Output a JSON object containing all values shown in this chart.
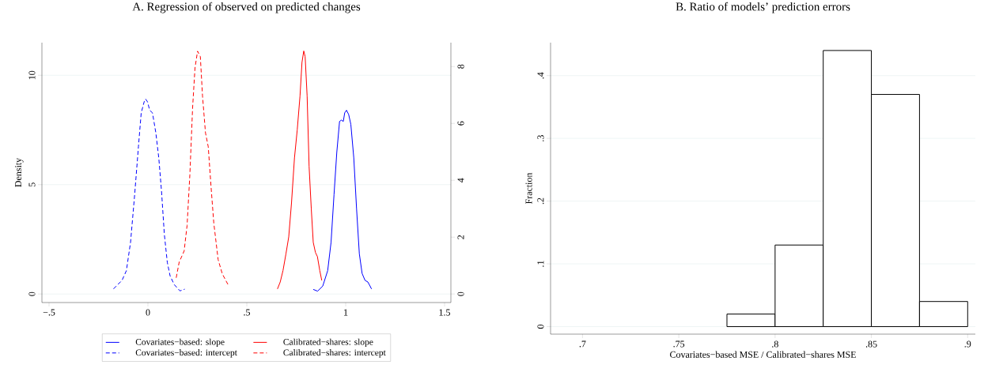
{
  "chart_data": [
    {
      "type": "line",
      "title": "A. Regression of observed on predicted changes",
      "ylabel": "Density",
      "legend": "bottom",
      "grid": "y",
      "xlim": [
        -0.536,
        1.532
      ],
      "xticks": [
        {
          "value": -0.5,
          "label": "−.5"
        },
        0,
        {
          "value": 0.5,
          "label": ".5"
        },
        1,
        1.5
      ],
      "ylim": [
        -0.39,
        11.49
      ],
      "yticks": [
        0,
        5,
        10
      ],
      "y2lim": [
        -0.3,
        8.84
      ],
      "y2ticks": [
        0,
        2,
        4,
        6,
        8
      ],
      "series": [
        {
          "name": "Covariates−based: slope",
          "color": "#0000ff",
          "line_style": "solid",
          "x": [
            0.836,
            0.858,
            0.884,
            0.909,
            0.926,
            0.941,
            0.955,
            0.969,
            0.978,
            0.988,
            0.995,
            1.004,
            1.015,
            1.026,
            1.041,
            1.055,
            1.069,
            1.083,
            1.098,
            1.112,
            1.131
          ],
          "values": [
            0.21,
            0.13,
            0.36,
            1.07,
            2.36,
            4.54,
            6.47,
            7.89,
            7.95,
            7.89,
            8.28,
            8.4,
            8.21,
            7.76,
            6.22,
            3.9,
            1.84,
            0.94,
            0.62,
            0.55,
            0.23
          ]
        },
        {
          "name": "Calibrated−shares: slope",
          "color": "#ff0000",
          "line_style": "solid",
          "x": [
            0.655,
            0.669,
            0.683,
            0.698,
            0.712,
            0.726,
            0.741,
            0.755,
            0.769,
            0.779,
            0.788,
            0.795,
            0.805,
            0.815,
            0.826,
            0.836,
            0.847,
            0.857,
            0.869,
            0.879
          ],
          "values": [
            0.23,
            0.55,
            1.07,
            1.84,
            2.61,
            4.16,
            6.22,
            7.5,
            9.05,
            10.59,
            11.11,
            10.85,
            9.05,
            5.83,
            3.9,
            2.36,
            1.9,
            1.71,
            1.07,
            0.62
          ]
        },
        {
          "name": "Covariates−based: intercept",
          "color": "#0000ff",
          "line_style": "dashed",
          "axis": "y2",
          "x": [
            -0.174,
            -0.131,
            -0.109,
            -0.088,
            -0.067,
            -0.048,
            -0.034,
            -0.019,
            -0.012,
            -0.002,
            0.009,
            0.023,
            0.04,
            0.055,
            0.069,
            0.083,
            0.098,
            0.112,
            0.133,
            0.162,
            0.186
          ],
          "values": [
            0.18,
            0.48,
            0.82,
            1.81,
            3.5,
            5.18,
            6.37,
            6.76,
            6.86,
            6.76,
            6.46,
            6.37,
            5.67,
            4.78,
            3.59,
            2.1,
            1.11,
            0.64,
            0.33,
            0.11,
            0.17
          ]
        },
        {
          "name": "Calibrated−shares: intercept",
          "color": "#ff0000",
          "line_style": "dashed",
          "axis": "y2",
          "x": [
            0.143,
            0.158,
            0.183,
            0.198,
            0.212,
            0.226,
            0.238,
            0.251,
            0.265,
            0.276,
            0.291,
            0.305,
            0.319,
            0.333,
            0.355,
            0.376,
            0.405
          ],
          "values": [
            0.57,
            1.12,
            1.51,
            2.41,
            4.19,
            6.56,
            7.95,
            8.54,
            8.35,
            6.97,
            5.67,
            5.18,
            3.79,
            2.5,
            1.21,
            0.71,
            0.33
          ]
        }
      ]
    },
    {
      "type": "histogram",
      "title": "B. Ratio of models’ prediction errors",
      "xlabel": "Covariates−based MSE / Calibrated−shares MSE",
      "ylabel": "Fraction",
      "grid": "y",
      "color": "#ffffff",
      "bins": [
        0.775,
        0.8,
        0.825,
        0.85,
        0.875,
        0.9
      ],
      "values": [
        0.02,
        0.13,
        0.44,
        0.37,
        0.04
      ],
      "xlim": [
        0.6834,
        0.904
      ],
      "xticks": [
        {
          "value": 0.7,
          "label": ".7"
        },
        {
          "value": 0.75,
          "label": ".75"
        },
        {
          "value": 0.8,
          "label": ".8"
        },
        {
          "value": 0.85,
          "label": ".85"
        },
        {
          "value": 0.9,
          "label": ".9"
        }
      ],
      "ylim": [
        -0.012,
        0.4525
      ],
      "yticks": [
        0,
        {
          "value": 0.1,
          "label": ".1"
        },
        {
          "value": 0.2,
          "label": ".2"
        },
        {
          "value": 0.3,
          "label": ".3"
        },
        {
          "value": 0.4,
          "label": ".4"
        }
      ]
    }
  ]
}
